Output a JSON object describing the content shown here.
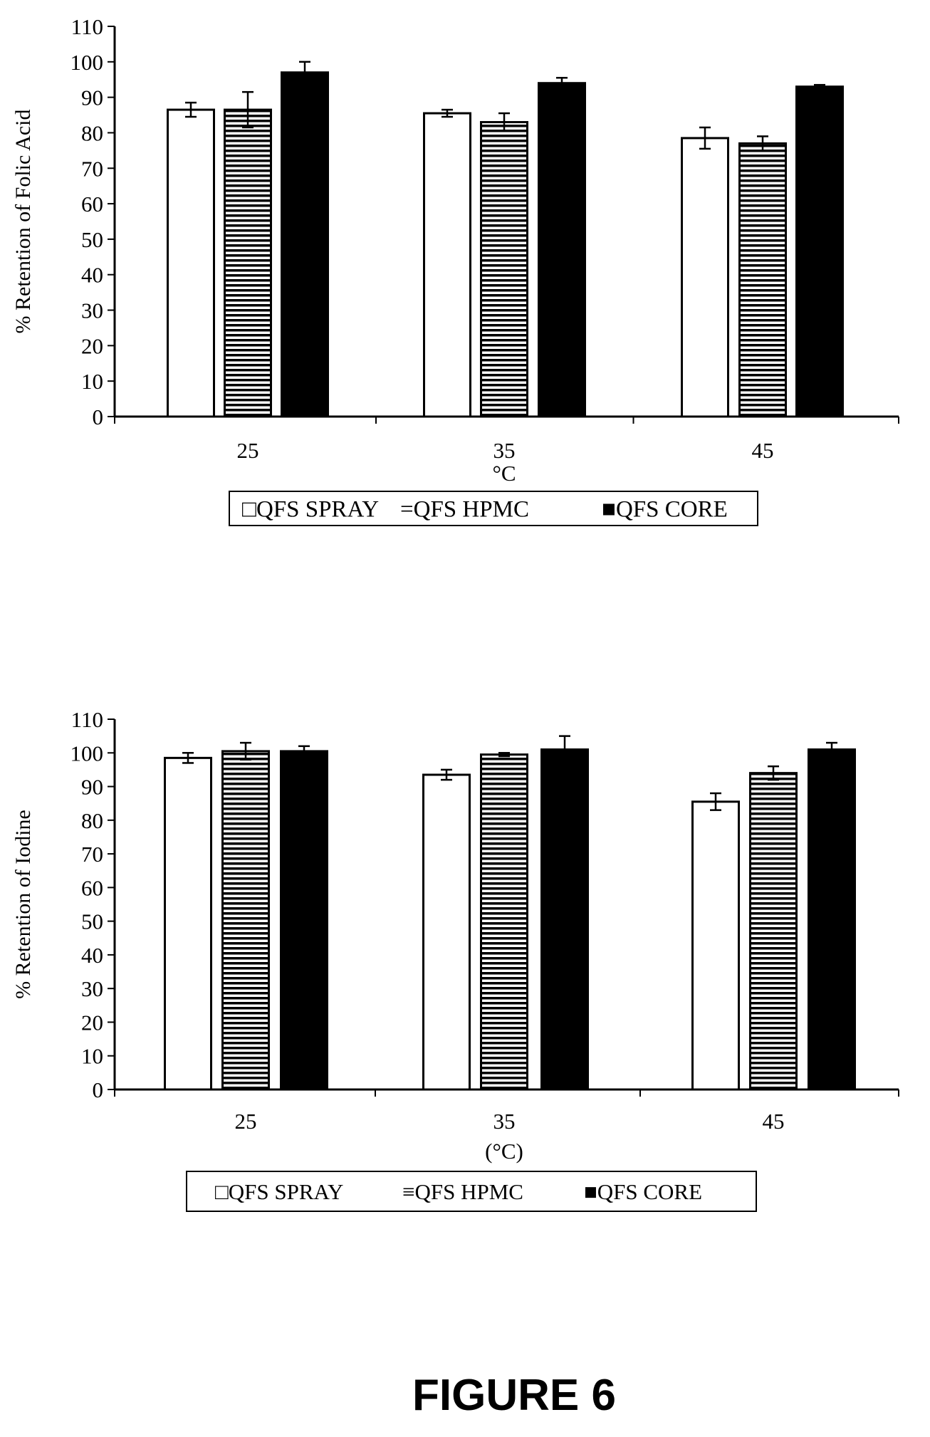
{
  "figure_caption": "FIGURE 6",
  "chart_data": [
    {
      "type": "bar",
      "title": "",
      "xlabel": "°C",
      "ylabel": "% Retention of Folic Acid",
      "ylim": [
        0,
        110
      ],
      "yticks": [
        0,
        10,
        20,
        30,
        40,
        50,
        60,
        70,
        80,
        90,
        100,
        110
      ],
      "categories": [
        "25",
        "35",
        "45"
      ],
      "series": [
        {
          "name": "QFS SPRAY",
          "values": [
            86.5,
            85.5,
            78.5
          ],
          "errors": [
            2.0,
            1.0,
            3.0
          ],
          "fill": "white"
        },
        {
          "name": "QFS HPMC",
          "values": [
            86.5,
            83.0,
            77.0
          ],
          "errors": [
            5.0,
            2.5,
            2.0
          ],
          "fill": "stripes"
        },
        {
          "name": "QFS CORE",
          "values": [
            97.0,
            94.0,
            93.0
          ],
          "errors": [
            3.0,
            1.5,
            0.5
          ],
          "fill": "black"
        }
      ],
      "legend": {
        "position": "bottom",
        "entries": [
          {
            "marker": "□",
            "label": "QFS SPRAY"
          },
          {
            "marker": "=",
            "label": "QFS HPMC"
          },
          {
            "marker": "■",
            "label": "QFS CORE"
          }
        ]
      },
      "grid": false
    },
    {
      "type": "bar",
      "title": "",
      "xlabel": "(°C)",
      "ylabel": "% Retention of Iodine",
      "ylim": [
        0,
        110
      ],
      "yticks": [
        0,
        10,
        20,
        30,
        40,
        50,
        60,
        70,
        80,
        90,
        100,
        110
      ],
      "categories": [
        "25",
        "35",
        "45"
      ],
      "series": [
        {
          "name": "QFS SPRAY",
          "values": [
            98.5,
            93.5,
            85.5
          ],
          "errors": [
            1.5,
            1.5,
            2.5
          ],
          "fill": "white"
        },
        {
          "name": "QFS HPMC",
          "values": [
            100.5,
            99.5,
            94.0
          ],
          "errors": [
            2.5,
            0.5,
            2.0
          ],
          "fill": "stripes"
        },
        {
          "name": "QFS CORE",
          "values": [
            100.5,
            101.0,
            101.0
          ],
          "errors": [
            1.5,
            4.0,
            2.0
          ],
          "fill": "black"
        }
      ],
      "legend": {
        "position": "bottom",
        "entries": [
          {
            "marker": "□",
            "label": "QFS SPRAY"
          },
          {
            "marker": "≡",
            "label": "QFS HPMC"
          },
          {
            "marker": "■",
            "label": "QFS CORE"
          }
        ]
      },
      "grid": false
    }
  ]
}
